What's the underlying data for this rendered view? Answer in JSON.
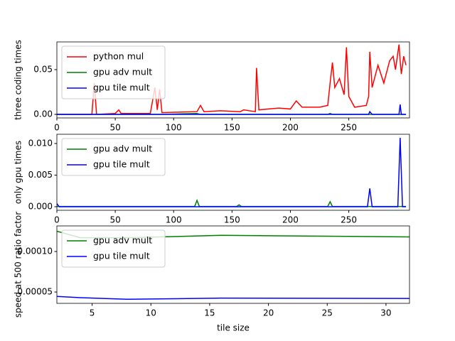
{
  "chart_data": [
    {
      "type": "line",
      "y_label": "three coding times",
      "x": [
        0,
        30,
        32,
        34,
        50,
        53,
        55,
        80,
        84,
        86,
        88,
        90,
        120,
        123,
        126,
        140,
        157,
        160,
        170,
        171,
        173,
        190,
        200,
        205,
        210,
        225,
        232,
        234,
        236,
        238,
        242,
        246,
        248,
        250,
        255,
        265,
        267,
        268,
        270,
        275,
        280,
        285,
        288,
        290,
        293,
        294,
        295,
        297,
        299
      ],
      "series": [
        {
          "name": "python mul",
          "color": "#ff0000",
          "values": [
            0,
            0,
            0.035,
            0,
            0.001,
            0.005,
            0.001,
            0.001,
            0.03,
            0.005,
            0.028,
            0.002,
            0.003,
            0.01,
            0.003,
            0.004,
            0.003,
            0.005,
            0.003,
            0.052,
            0.005,
            0.007,
            0.006,
            0.015,
            0.008,
            0.008,
            0.01,
            0.035,
            0.058,
            0.03,
            0.04,
            0.022,
            0.075,
            0.02,
            0.008,
            0.01,
            0.02,
            0.07,
            0.03,
            0.055,
            0.035,
            0.06,
            0.065,
            0.05,
            0.078,
            0.06,
            0.045,
            0.065,
            0.055
          ]
        },
        {
          "name": "gpu adv mult",
          "color": "#008000",
          "values": [
            0,
            0,
            0,
            0,
            0,
            0,
            0,
            0,
            0,
            0,
            0,
            0,
            0.001,
            0,
            0,
            0,
            0,
            0,
            0,
            0,
            0,
            0,
            0,
            0,
            0,
            0,
            0,
            0.001,
            0,
            0,
            0,
            0,
            0,
            0,
            0,
            0,
            0,
            0,
            0,
            0,
            0,
            0,
            0,
            0,
            0,
            0,
            0,
            0,
            0
          ]
        },
        {
          "name": "gpu tile mult",
          "color": "#0000ff",
          "values": [
            0,
            0,
            0,
            0,
            0,
            0,
            0,
            0,
            0,
            0,
            0,
            0,
            0,
            0,
            0,
            0,
            0,
            0,
            0,
            0,
            0,
            0,
            0,
            0,
            0,
            0,
            0,
            0,
            0,
            0,
            0,
            0,
            0,
            0,
            0,
            0,
            0,
            0.003,
            0,
            0,
            0,
            0,
            0,
            0,
            0,
            0.011,
            0,
            0,
            0
          ]
        }
      ],
      "xlim": [
        0,
        302
      ],
      "xticks": [
        0,
        50,
        100,
        150,
        200,
        250
      ],
      "ylim": [
        -0.004,
        0.081
      ],
      "yticks": [
        {
          "value": 0,
          "label": "0.00"
        },
        {
          "value": 0.05,
          "label": "0.05"
        }
      ],
      "legend": "upper-left"
    },
    {
      "type": "line",
      "y_label": "only gpu times",
      "x": [
        0,
        2,
        4,
        118,
        120,
        122,
        154,
        156,
        158,
        232,
        234,
        236,
        266,
        268,
        270,
        292,
        294,
        296,
        299
      ],
      "series": [
        {
          "name": "gpu adv mult",
          "color": "#008000",
          "values": [
            5e-05,
            5e-05,
            5e-05,
            5e-05,
            0.001,
            5e-05,
            5e-05,
            0.0003,
            5e-05,
            5e-05,
            0.0008,
            5e-05,
            5e-05,
            5e-05,
            5e-05,
            5e-05,
            5e-05,
            5e-05,
            5e-05
          ]
        },
        {
          "name": "gpu tile mult",
          "color": "#0000ff",
          "values": [
            0.0005,
            0,
            0,
            0,
            0,
            0,
            0,
            0,
            0,
            0,
            0,
            0,
            0,
            0.0029,
            0,
            0,
            0.0109,
            0,
            0
          ]
        }
      ],
      "xlim": [
        0,
        302
      ],
      "xticks": [
        0,
        50,
        100,
        150,
        200,
        250
      ],
      "ylim": [
        -0.00056,
        0.01146
      ],
      "yticks": [
        {
          "value": 0,
          "label": "0.000"
        },
        {
          "value": 0.005,
          "label": "0.005"
        },
        {
          "value": 0.01,
          "label": "0.010"
        }
      ],
      "legend": "upper-left"
    },
    {
      "type": "line",
      "y_label": "speed at 500 ratio factor",
      "x_label": "tile size",
      "x": [
        2,
        4,
        8,
        16,
        32
      ],
      "series": [
        {
          "name": "gpu adv mult",
          "color": "#008000",
          "values": [
            0.000125,
            0.000117,
            0.000117,
            0.00012,
            0.000118
          ]
        },
        {
          "name": "gpu tile mult",
          "color": "#0000ff",
          "values": [
            4.45e-05,
            4.3e-05,
            4.1e-05,
            4.25e-05,
            4.2e-05
          ]
        }
      ],
      "xlim": [
        2,
        32
      ],
      "xticks": [
        5,
        10,
        15,
        20,
        25,
        30
      ],
      "ylim": [
        3.6e-05,
        0.0001316
      ],
      "yticks": [
        {
          "value": 5e-05,
          "label": "0.00005"
        },
        {
          "value": 0.0001,
          "label": "0.00010"
        }
      ],
      "legend": "upper-left"
    }
  ]
}
